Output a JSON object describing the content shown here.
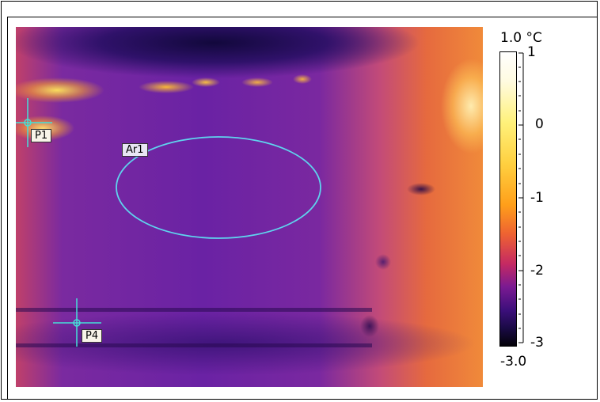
{
  "image": {
    "spots": [
      {
        "id": "p1",
        "label": "P1"
      },
      {
        "id": "p4",
        "label": "P4"
      }
    ],
    "area": {
      "label": "Ar1",
      "color": "#4fd8e8"
    }
  },
  "scale": {
    "max_label": "1.0 °C",
    "min_label": "-3.0",
    "ticks": [
      "1",
      "0",
      "-1",
      "-2",
      "-3"
    ]
  },
  "colors": {
    "marker": "#45e0d8",
    "ellipse": "#5fd4ee",
    "frame": "#000000"
  }
}
